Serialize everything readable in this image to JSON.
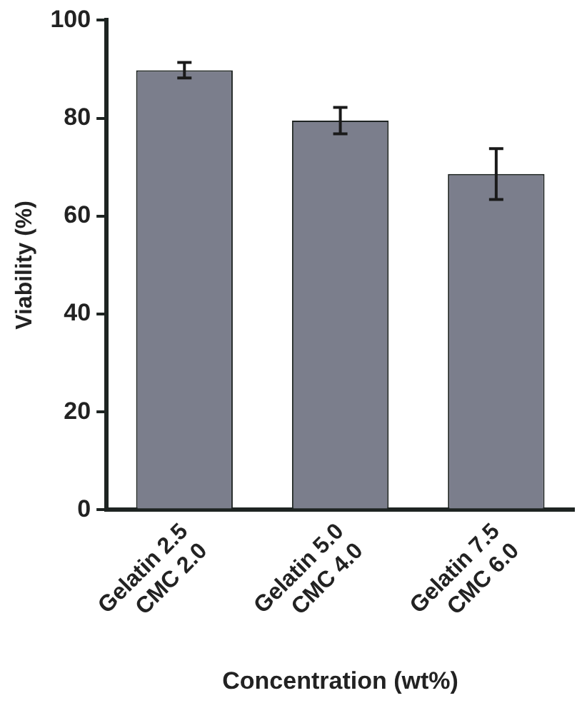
{
  "chart_data": {
    "type": "bar",
    "xlabel": "Concentration (wt%)",
    "ylabel": "Viability (%)",
    "categories": [
      "Gelatin 2.5\nCMC 2.0",
      "Gelatin 5.0\nCMC 4.0",
      "Gelatin 7.5\nCMC 6.0"
    ],
    "values": [
      89.8,
      79.5,
      68.6
    ],
    "errors": [
      1.6,
      2.7,
      5.2
    ],
    "color": "#7b7e8c",
    "ylim": [
      0,
      100
    ],
    "yticks": [
      0,
      20,
      40,
      60,
      80,
      100
    ],
    "grid": false,
    "legend": false
  }
}
